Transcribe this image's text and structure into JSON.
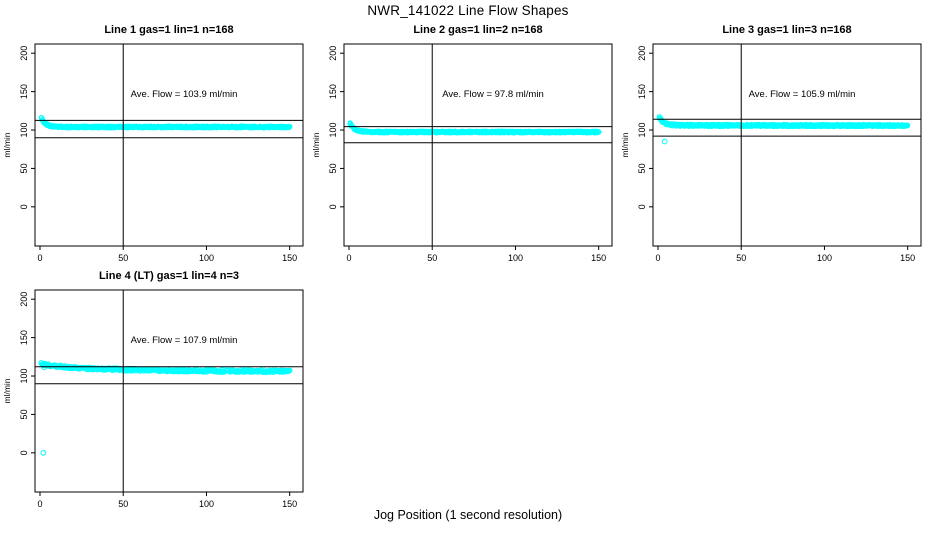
{
  "title": "NWR_141022  Line Flow Shapes",
  "xlabel": "Jog Position (1 second resolution)",
  "chart_data": [
    {
      "type": "scatter",
      "title": "Line 1 gas=1 lin=1 n=168",
      "ylabel": "ml/min",
      "annotation": "Ave. Flow =  103.9  ml/min",
      "ave_flow_ml_min": 103.9,
      "n_runs": 168,
      "x_ticks": [
        0,
        50,
        100,
        150
      ],
      "y_ticks": [
        0,
        50,
        100,
        150,
        200
      ],
      "xlim": [
        -3,
        158
      ],
      "ylim": [
        -51,
        212
      ],
      "vline_x": 50,
      "ref_lines_y": [
        112.5,
        90
      ],
      "marker_color": "#00FFFF",
      "curve": [
        [
          0.8,
          116
        ],
        [
          1.5,
          113
        ],
        [
          2.5,
          110
        ],
        [
          3.5,
          108
        ],
        [
          5,
          106.3
        ],
        [
          7,
          105
        ],
        [
          10,
          104.3
        ],
        [
          15,
          104
        ],
        [
          30,
          104
        ],
        [
          150,
          104
        ]
      ],
      "band_halfwidth": 1.1,
      "point_density": 3,
      "outliers": [],
      "seed": 11
    },
    {
      "type": "scatter",
      "title": "Line 2 gas=1 lin=2 n=168",
      "ylabel": "ml/min",
      "annotation": "Ave. Flow =  97.8  ml/min",
      "ave_flow_ml_min": 97.8,
      "n_runs": 168,
      "x_ticks": [
        0,
        50,
        100,
        150
      ],
      "y_ticks": [
        0,
        50,
        100,
        150,
        200
      ],
      "xlim": [
        -3,
        158
      ],
      "ylim": [
        -51,
        212
      ],
      "vline_x": 50,
      "ref_lines_y": [
        104.5,
        83.5
      ],
      "marker_color": "#00FFFF",
      "curve": [
        [
          0.8,
          108.5
        ],
        [
          1.5,
          106
        ],
        [
          2.5,
          103.5
        ],
        [
          3.5,
          101.5
        ],
        [
          5,
          99.8
        ],
        [
          7,
          98.6
        ],
        [
          10,
          97.9
        ],
        [
          15,
          97.5
        ],
        [
          30,
          97.4
        ],
        [
          150,
          97.4
        ]
      ],
      "band_halfwidth": 1.1,
      "point_density": 3,
      "outliers": [],
      "seed": 22
    },
    {
      "type": "scatter",
      "title": "Line 3 gas=1 lin=3 n=168",
      "ylabel": "ml/min",
      "annotation": "Ave. Flow =  105.9  ml/min",
      "ave_flow_ml_min": 105.9,
      "n_runs": 168,
      "x_ticks": [
        0,
        50,
        100,
        150
      ],
      "y_ticks": [
        0,
        50,
        100,
        150,
        200
      ],
      "xlim": [
        -3,
        158
      ],
      "ylim": [
        -51,
        212
      ],
      "vline_x": 50,
      "ref_lines_y": [
        114,
        92
      ],
      "marker_color": "#00FFFF",
      "curve": [
        [
          0.8,
          116.5
        ],
        [
          1.5,
          114
        ],
        [
          2.5,
          111.5
        ],
        [
          3.5,
          109.5
        ],
        [
          5,
          108
        ],
        [
          7,
          107
        ],
        [
          10,
          106.5
        ],
        [
          15,
          106.2
        ],
        [
          30,
          106
        ],
        [
          150,
          105.8
        ]
      ],
      "band_halfwidth": 1.3,
      "point_density": 3,
      "outliers": [
        [
          4,
          85
        ]
      ],
      "seed": 33
    },
    {
      "type": "scatter",
      "title": "Line 4 (LT) gas=1 lin=4 n=3",
      "ylabel": "ml/min",
      "annotation": "Ave. Flow =  107.9  ml/min",
      "ave_flow_ml_min": 107.9,
      "n_runs": 3,
      "x_ticks": [
        0,
        50,
        100,
        150
      ],
      "y_ticks": [
        0,
        50,
        100,
        150,
        200
      ],
      "xlim": [
        -3,
        158
      ],
      "ylim": [
        -51,
        212
      ],
      "vline_x": 50,
      "ref_lines_y": [
        112,
        90
      ],
      "marker_color": "#00FFFF",
      "curve": [
        [
          0.8,
          116.5
        ],
        [
          2,
          115.5
        ],
        [
          4,
          114.5
        ],
        [
          7,
          113.5
        ],
        [
          10,
          112.8
        ],
        [
          15,
          111.8
        ],
        [
          20,
          111
        ],
        [
          30,
          109.8
        ],
        [
          40,
          109
        ],
        [
          50,
          108.4
        ],
        [
          60,
          107.9
        ],
        [
          80,
          107.2
        ],
        [
          100,
          106.8
        ],
        [
          120,
          106.5
        ],
        [
          150,
          106.2
        ]
      ],
      "band_halfwidth": 1.7,
      "point_density": 2,
      "outliers": [
        [
          2,
          0
        ],
        [
          2.5,
          111.5
        ]
      ],
      "seed": 44
    }
  ],
  "colors": {
    "marker": "#00FFFF",
    "axis": "#000000",
    "background": "#FFFFFF"
  }
}
